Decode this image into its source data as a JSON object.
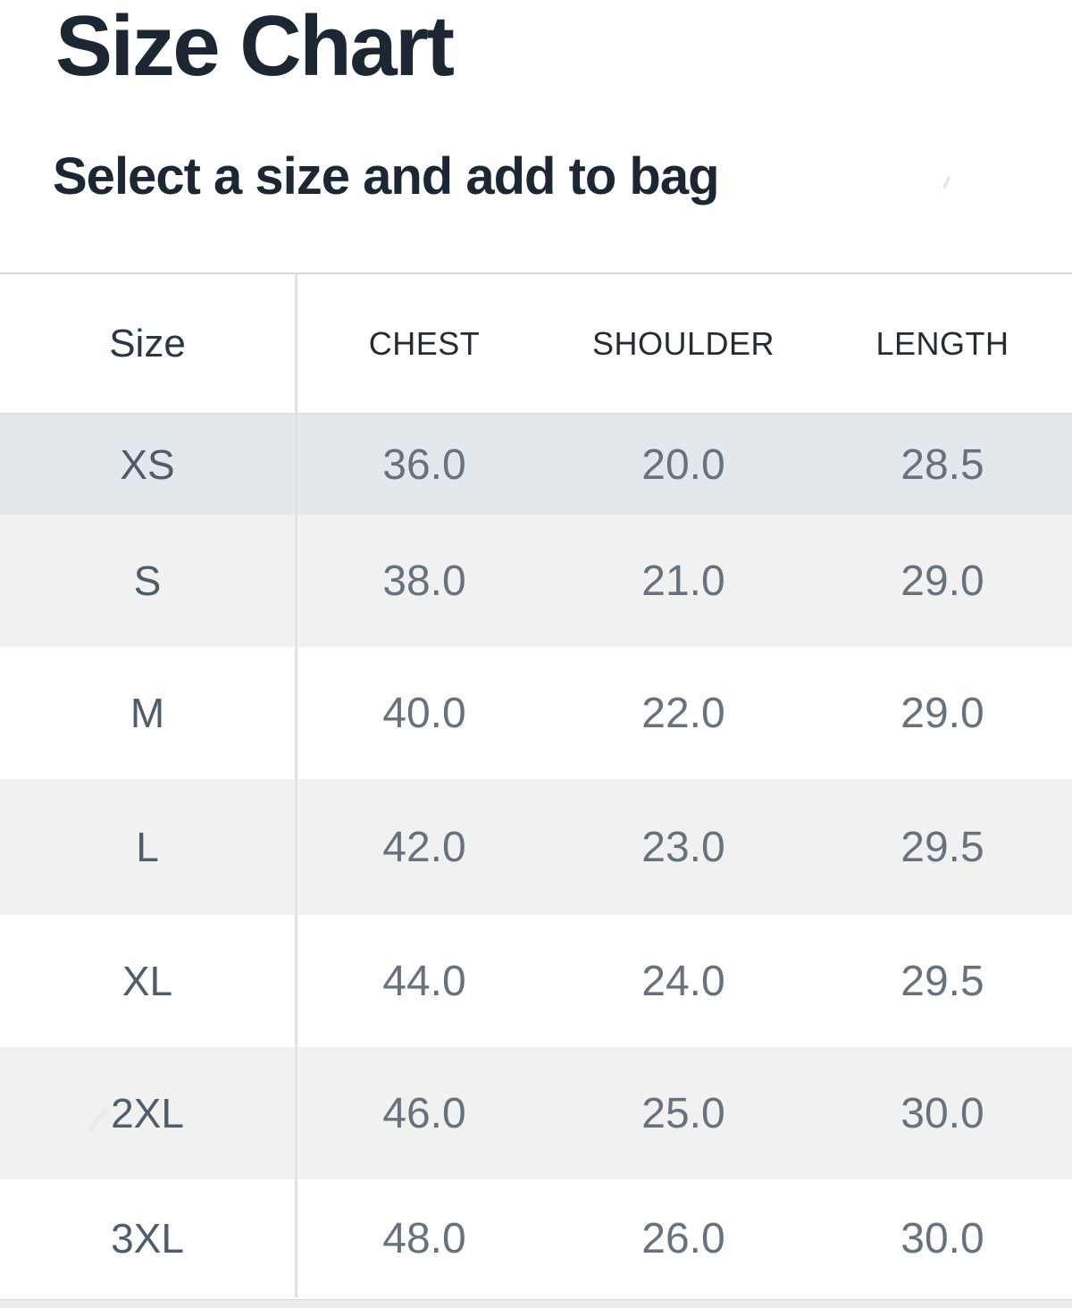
{
  "page": {
    "title": "Size Chart",
    "subtitle": "Select a size and add to bag"
  },
  "table": {
    "columns": [
      {
        "key": "size",
        "label": "Size"
      },
      {
        "key": "chest",
        "label": "CHEST"
      },
      {
        "key": "shoulder",
        "label": "SHOULDER"
      },
      {
        "key": "length",
        "label": "LENGTH"
      }
    ],
    "rows": [
      {
        "size": "XS",
        "chest": "36.0",
        "shoulder": "20.0",
        "length": "28.5",
        "selected": true
      },
      {
        "size": "S",
        "chest": "38.0",
        "shoulder": "21.0",
        "length": "29.0",
        "selected": false
      },
      {
        "size": "M",
        "chest": "40.0",
        "shoulder": "22.0",
        "length": "29.0",
        "selected": false
      },
      {
        "size": "L",
        "chest": "42.0",
        "shoulder": "23.0",
        "length": "29.5",
        "selected": false
      },
      {
        "size": "XL",
        "chest": "44.0",
        "shoulder": "24.0",
        "length": "29.5",
        "selected": false
      },
      {
        "size": "2XL",
        "chest": "46.0",
        "shoulder": "25.0",
        "length": "30.0",
        "selected": false
      },
      {
        "size": "3XL",
        "chest": "48.0",
        "shoulder": "26.0",
        "length": "30.0",
        "selected": false
      }
    ]
  },
  "colors": {
    "heading_text": "#1c2733",
    "header_label_text": "#242b33",
    "size_label_text": "#4f5c6b",
    "value_text": "#68727e",
    "selected_row_bg": "#e3e8ed",
    "shaded_row_bg": "#f1f1f2",
    "border": "#d9d9d9",
    "divider": "#e2e2e2"
  }
}
